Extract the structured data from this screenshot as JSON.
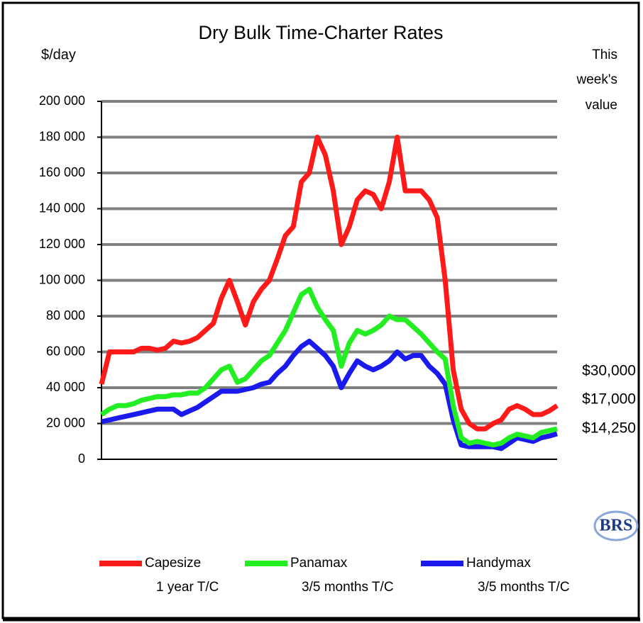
{
  "chart_data": {
    "type": "line",
    "title": "Dry Bulk Time-Charter Rates",
    "y_axis_label": "$/day",
    "right_header": [
      "This",
      "week's",
      "value"
    ],
    "this_week_values": [
      "$30,000",
      "$17,000",
      "$14,250"
    ],
    "logo": "BRS",
    "categories": [
      null,
      null,
      null,
      null,
      null,
      null,
      null,
      null,
      null,
      null,
      null,
      null,
      null,
      null,
      null,
      null,
      null,
      null,
      null,
      null,
      null,
      null,
      null,
      null,
      null,
      null,
      null,
      null,
      null,
      null,
      null,
      null,
      null,
      null,
      null,
      null,
      null,
      null,
      null,
      null,
      null,
      null,
      null,
      null,
      null,
      null,
      null,
      null,
      null,
      null,
      null,
      null,
      null,
      null,
      null,
      null,
      null,
      null
    ],
    "ylim": [
      0,
      200000
    ],
    "yticks": [
      {
        "value": 0,
        "label": "0"
      },
      {
        "value": 20000,
        "label": "20 000"
      },
      {
        "value": 40000,
        "label": "40 000"
      },
      {
        "value": 60000,
        "label": "60 000"
      },
      {
        "value": 80000,
        "label": "80 000"
      },
      {
        "value": 100000,
        "label": "100 000"
      },
      {
        "value": 120000,
        "label": "120 000"
      },
      {
        "value": 140000,
        "label": "140 000"
      },
      {
        "value": 160000,
        "label": "160 000"
      },
      {
        "value": 180000,
        "label": "180 000"
      },
      {
        "value": 200000,
        "label": "200 000"
      }
    ],
    "grid": true,
    "series": [
      {
        "name": "Capesize",
        "detail": "1 year T/C",
        "color": "#ff1a1a",
        "values": [
          42000,
          60000,
          60000,
          60000,
          60000,
          62000,
          62000,
          61000,
          62000,
          66000,
          65000,
          66000,
          68000,
          72000,
          76000,
          90000,
          100000,
          88000,
          75000,
          88000,
          95000,
          100000,
          112000,
          125000,
          130000,
          155000,
          160000,
          180000,
          170000,
          150000,
          120000,
          130000,
          145000,
          150000,
          148000,
          140000,
          155000,
          180000,
          150000,
          150000,
          150000,
          145000,
          135000,
          100000,
          50000,
          28000,
          20000,
          17000,
          17000,
          20000,
          22000,
          28000,
          30000,
          28000,
          25000,
          25000,
          27000,
          30000
        ]
      },
      {
        "name": "Panamax",
        "detail": "3/5 months T/C",
        "color": "#22ee22",
        "values": [
          25000,
          28000,
          30000,
          30000,
          31000,
          33000,
          34000,
          35000,
          35000,
          36000,
          36000,
          37000,
          37000,
          40000,
          45000,
          50000,
          52000,
          43000,
          45000,
          50000,
          55000,
          58000,
          65000,
          72000,
          82000,
          92000,
          95000,
          85000,
          78000,
          72000,
          52000,
          65000,
          72000,
          70000,
          72000,
          75000,
          80000,
          78000,
          78000,
          74000,
          70000,
          65000,
          60000,
          56000,
          30000,
          12000,
          9000,
          10000,
          9000,
          8000,
          9000,
          12000,
          14000,
          13000,
          12000,
          15000,
          16000,
          17000
        ]
      },
      {
        "name": "Handymax",
        "detail": "3/5 months T/C",
        "color": "#1a1aee",
        "values": [
          21000,
          22000,
          23000,
          24000,
          25000,
          26000,
          27000,
          28000,
          28000,
          28000,
          25000,
          27000,
          29000,
          32000,
          35000,
          38000,
          38000,
          38000,
          39000,
          40000,
          42000,
          43000,
          48000,
          52000,
          58000,
          63000,
          66000,
          62000,
          58000,
          52000,
          40000,
          48000,
          55000,
          52000,
          50000,
          52000,
          55000,
          60000,
          56000,
          58000,
          58000,
          52000,
          48000,
          42000,
          22000,
          8000,
          7000,
          7000,
          7000,
          7000,
          6000,
          9000,
          12000,
          11000,
          10000,
          12000,
          13000,
          14250
        ]
      }
    ]
  }
}
